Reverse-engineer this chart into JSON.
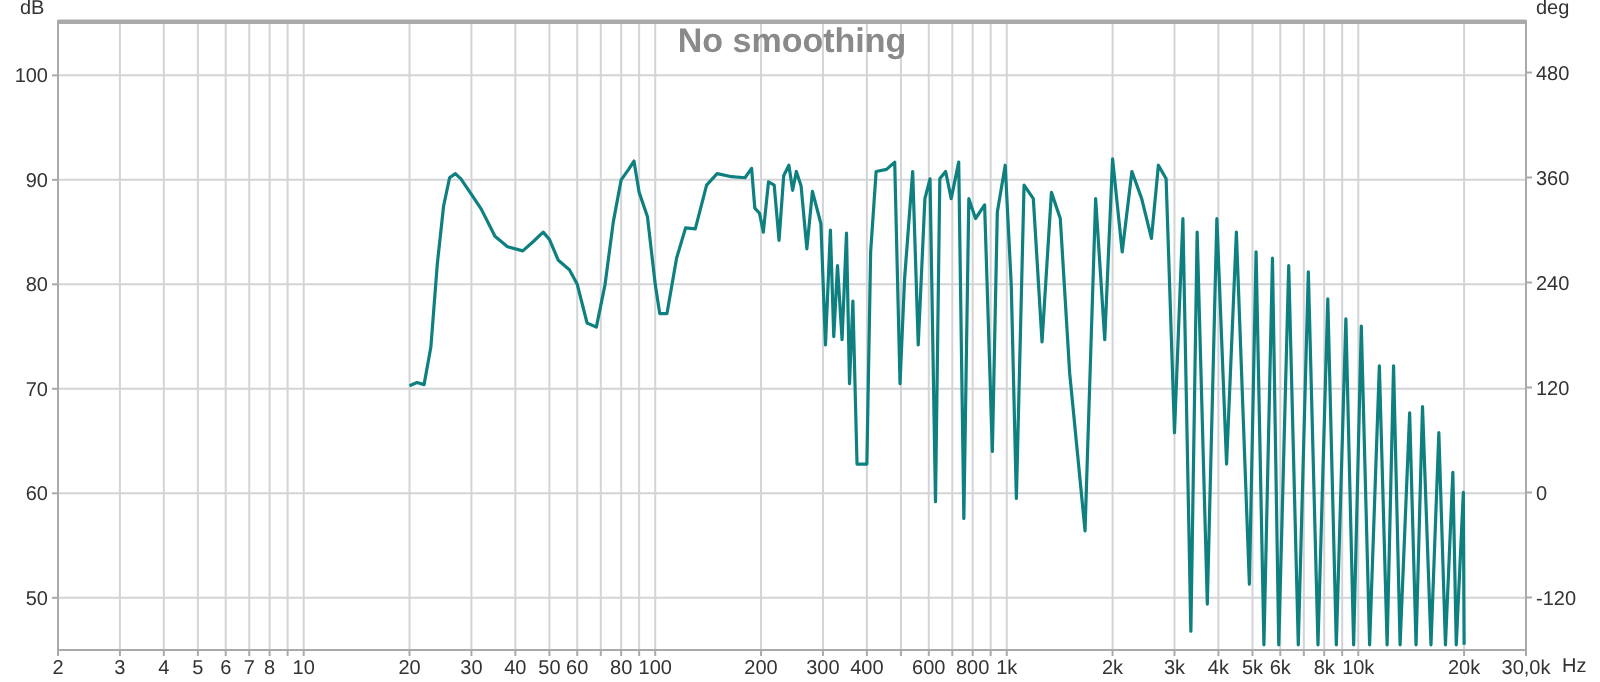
{
  "chart_data": {
    "type": "line",
    "title": "No smoothing",
    "xlabel": "Hz",
    "ylabel": "dB",
    "y2label": "deg",
    "log": "x",
    "grid": true,
    "xlim": [
      2,
      30000
    ],
    "ylim": [
      45,
      105.3
    ],
    "y2lim": [
      -180,
      540
    ],
    "xticks": [
      2,
      3,
      4,
      5,
      6,
      7,
      8,
      {
        "value": 9,
        "label": null
      },
      10,
      20,
      30,
      40,
      50,
      60,
      {
        "value": 70,
        "label": null
      },
      80,
      {
        "value": 90,
        "label": null
      },
      100,
      200,
      300,
      400,
      {
        "value": 500,
        "label": null
      },
      600,
      {
        "value": 700,
        "label": null
      },
      800,
      {
        "value": 900,
        "label": null
      },
      {
        "value": 1000,
        "label": "1k"
      },
      {
        "value": 2000,
        "label": "2k"
      },
      {
        "value": 3000,
        "label": "3k"
      },
      {
        "value": 4000,
        "label": "4k"
      },
      {
        "value": 5000,
        "label": "5k"
      },
      {
        "value": 6000,
        "label": "6k"
      },
      {
        "value": 7000,
        "label": null
      },
      {
        "value": 8000,
        "label": "8k"
      },
      {
        "value": 9000,
        "label": null
      },
      {
        "value": 10000,
        "label": "10k"
      },
      {
        "value": 20000,
        "label": "20k"
      },
      {
        "value": 30000,
        "label": "30,0k"
      }
    ],
    "yticks": [
      50,
      60,
      70,
      80,
      90,
      100
    ],
    "y2ticks": [
      -120,
      0,
      120,
      240,
      360,
      480
    ],
    "series": [
      {
        "color": "#0f8080",
        "x": [
          20,
          21,
          22,
          23,
          24,
          25,
          26,
          27,
          28,
          30,
          32,
          35,
          38,
          42,
          45,
          48,
          50,
          53,
          57,
          60,
          64,
          68,
          72,
          76,
          80,
          84,
          87,
          90,
          95,
          100,
          103,
          108,
          115,
          122,
          130,
          140,
          150,
          165,
          180,
          188,
          192,
          198,
          203,
          210,
          218,
          225,
          232,
          240,
          246,
          252,
          260,
          270,
          280,
          296,
          305,
          315,
          322,
          330,
          340,
          350,
          357,
          365,
          375,
          400,
          410,
          425,
          455,
          480,
          497,
          512,
          540,
          560,
          585,
          605,
          627,
          645,
          670,
          695,
          730,
          755,
          780,
          815,
          865,
          910,
          940,
          990,
          1030,
          1065,
          1120,
          1190,
          1260,
          1340,
          1420,
          1510,
          1670,
          1790,
          1900,
          2000,
          2130,
          2270,
          2420,
          2580,
          2700,
          2840,
          3000,
          3170,
          3340,
          3480,
          3720,
          3960,
          4220,
          4500,
          4900,
          5120,
          5390,
          5700,
          5940,
          6340,
          6750,
          7210,
          7680,
          8190,
          8660,
          9220,
          9700,
          10200,
          10770,
          11480,
          12080,
          12600,
          13150,
          14000,
          14600,
          15230,
          16100,
          16950,
          17700,
          18580,
          19000,
          19900,
          20000
        ],
        "values": [
          70.3,
          70.6,
          70.4,
          74,
          82,
          87.5,
          90.2,
          90.6,
          90.1,
          88.6,
          87.2,
          84.6,
          83.6,
          83.2,
          84.1,
          85,
          84.3,
          82.3,
          81.4,
          80,
          76.3,
          75.9,
          80,
          86,
          90,
          91,
          91.8,
          88.8,
          86.5,
          80,
          77.2,
          77.2,
          82.5,
          85.4,
          85.3,
          89.5,
          90.6,
          90.3,
          90.2,
          91.1,
          87.3,
          86.8,
          85,
          89.8,
          89.5,
          84.2,
          90.4,
          91.4,
          89,
          90.8,
          89.4,
          83.4,
          88.9,
          85.8,
          74.2,
          85.2,
          75,
          81.8,
          74.7,
          84.9,
          70.5,
          78.4,
          62.8,
          62.8,
          83.1,
          90.8,
          91,
          91.7,
          70.5,
          80.5,
          90.8,
          74.2,
          88.2,
          90.1,
          59.2,
          90.1,
          90.8,
          88.2,
          91.7,
          57.6,
          88.2,
          86.3,
          87.6,
          64,
          86.9,
          91.4,
          79.9,
          59.5,
          89.5,
          88.2,
          74.5,
          88.8,
          86.3,
          71.5,
          56.4,
          88.2,
          74.7,
          92,
          83.1,
          90.8,
          88.2,
          84.4,
          91.4,
          90.1,
          65.8,
          86.3,
          46.8,
          85,
          49.4,
          86.3,
          62.8,
          85,
          51.3,
          83.1,
          45.5,
          82.5,
          45.5,
          81.8,
          45.5,
          81.2,
          45.5,
          78.6,
          45.5,
          76.7,
          45.5,
          76,
          45.5,
          72.2,
          45.5,
          72.2,
          45.5,
          67.7,
          45.5,
          68.3,
          45.5,
          65.8,
          45.5,
          62,
          45.5,
          60.1,
          45.5
        ]
      }
    ]
  }
}
